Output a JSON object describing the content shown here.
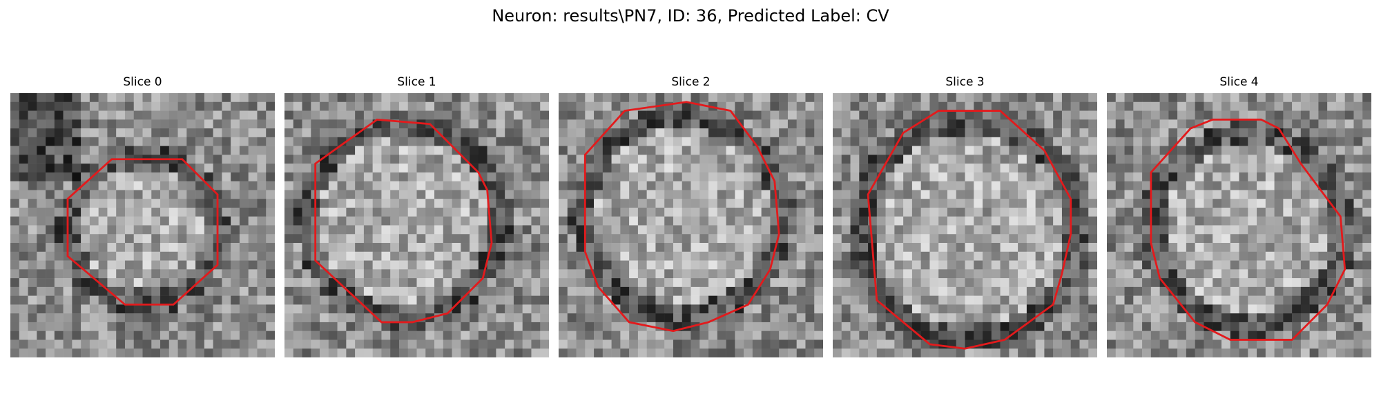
{
  "figure": {
    "title": "Neuron: results\\PN7, ID: 36, Predicted Label: CV",
    "slices": [
      {
        "label": "Slice 0",
        "contour_color": "#e31a1c"
      },
      {
        "label": "Slice 1",
        "contour_color": "#e31a1c"
      },
      {
        "label": "Slice 2",
        "contour_color": "#e31a1c"
      },
      {
        "label": "Slice 3",
        "contour_color": "#e31a1c"
      },
      {
        "label": "Slice 4",
        "contour_color": "#e31a1c"
      }
    ]
  }
}
